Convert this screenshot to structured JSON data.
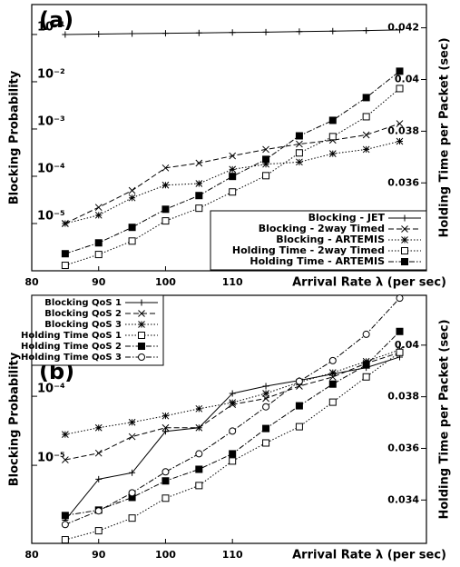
{
  "chart_data": [
    {
      "type": "line",
      "annotation": "(a)",
      "x_label": "Arrival Rate λ (per sec)",
      "y_label": "Blocking Probability",
      "y2_label": "Holding Time per Packet (sec)",
      "x": [
        85,
        90,
        95,
        100,
        105,
        110,
        115,
        120,
        125,
        130,
        135
      ],
      "xlim": [
        80,
        139
      ],
      "xticks": [
        80,
        90,
        100,
        110
      ],
      "ylog": true,
      "ylim": [
        1e-06,
        0.43
      ],
      "yticks": [
        {
          "value": 0.1,
          "label": "10⁻¹"
        },
        {
          "value": 0.01,
          "label": "10⁻²"
        },
        {
          "value": 0.001,
          "label": "10⁻³"
        },
        {
          "value": 0.0001,
          "label": "10⁻⁴"
        },
        {
          "value": 1e-05,
          "label": "10⁻⁵"
        }
      ],
      "y2lim": [
        0.0326,
        0.0429
      ],
      "y2ticks": [
        0.042,
        0.04,
        0.038,
        0.036
      ],
      "legend": "lower right",
      "series": [
        {
          "name": "Blocking - JET",
          "color": "#000000",
          "dash": "solid",
          "marker": "plus",
          "values": [
            0.1,
            0.102,
            0.104,
            0.106,
            0.108,
            0.11,
            0.112,
            0.115,
            0.118,
            0.121,
            0.125
          ]
        },
        {
          "name": "Blocking - 2way Timed",
          "color": "#000000",
          "dash": "dashed",
          "marker": "x",
          "values": [
            1e-05,
            2.2e-05,
            5e-05,
            0.00015,
            0.00019,
            0.00027,
            0.00037,
            0.00048,
            0.00058,
            0.00075,
            0.0013
          ]
        },
        {
          "name": "Blocking - ARTEMIS",
          "color": "#000000",
          "dash": "dotted",
          "marker": "star",
          "values": [
            1e-05,
            1.5e-05,
            3.5e-05,
            6.5e-05,
            7e-05,
            0.00014,
            0.00018,
            0.0002,
            0.0003,
            0.00037,
            0.00055
          ]
        },
        {
          "name": "Holding Time - 2way Timed",
          "color": "#000000",
          "dash": "dotted",
          "marker": "square-open",
          "axis": "y2",
          "values": [
            0.03281,
            0.03323,
            0.03375,
            0.03453,
            0.03502,
            0.03565,
            0.03628,
            0.03716,
            0.03779,
            0.03856,
            0.03965
          ]
        },
        {
          "name": "Holding Time - ARTEMIS",
          "color": "#000000",
          "dash": "dashdot",
          "marker": "square-filled",
          "axis": "y2",
          "values": [
            0.03326,
            0.03368,
            0.03428,
            0.03498,
            0.03551,
            0.03625,
            0.03691,
            0.03782,
            0.03842,
            0.0393,
            0.04032
          ]
        }
      ]
    },
    {
      "type": "line",
      "annotation": "(b)",
      "x_label": "Arrival Rate λ (per sec)",
      "y_label": "Blocking Probability",
      "y2_label": "Holding Time per Packet (sec)",
      "x": [
        85,
        90,
        95,
        100,
        105,
        110,
        115,
        120,
        125,
        130,
        135
      ],
      "xlim": [
        80,
        139
      ],
      "xticks": [
        80,
        90,
        100,
        110
      ],
      "ylog": true,
      "ylim": [
        7.4e-07,
        0.0029
      ],
      "yticks": [
        {
          "value": 0.001,
          "label": "10⁻³"
        },
        {
          "value": 0.0001,
          "label": "10⁻⁴"
        },
        {
          "value": 1e-05,
          "label": "10⁻⁵"
        }
      ],
      "y2lim": [
        0.03232,
        0.04193
      ],
      "y2ticks": [
        0.04,
        0.038,
        0.036,
        0.034
      ],
      "legend": "upper left",
      "series": [
        {
          "name": "Blocking QoS 1",
          "color": "#000000",
          "dash": "solid",
          "marker": "plus",
          "values": [
            1.6e-06,
            6.3e-06,
            7.8e-06,
            3.1e-05,
            3.5e-05,
            0.00011,
            0.00014,
            0.00017,
            0.00021,
            0.00026,
            0.00037
          ]
        },
        {
          "name": "Blocking QoS 2",
          "color": "#000000",
          "dash": "dashed",
          "marker": "x",
          "values": [
            1.2e-05,
            1.5e-05,
            2.6e-05,
            3.5e-05,
            3.5e-05,
            7.6e-05,
            9.3e-05,
            0.00014,
            0.00019,
            0.0003,
            0.00043
          ]
        },
        {
          "name": "Blocking QoS 3",
          "color": "#000000",
          "dash": "dotted",
          "marker": "star",
          "values": [
            2.8e-05,
            3.5e-05,
            4.2e-05,
            5.2e-05,
            6.6e-05,
            8.1e-05,
            0.00011,
            0.00016,
            0.00022,
            0.00032,
            0.00047
          ]
        },
        {
          "name": "Holding Time QoS 1",
          "color": "#000000",
          "dash": "dotted",
          "marker": "square-open",
          "axis": "y2",
          "values": [
            0.03246,
            0.03281,
            0.0333,
            0.03407,
            0.03456,
            0.03551,
            0.03621,
            0.03684,
            0.03779,
            0.03877,
            0.03972
          ]
        },
        {
          "name": "Holding Time QoS 2",
          "color": "#000000",
          "dash": "dashdot",
          "marker": "square-filled",
          "axis": "y2",
          "values": [
            0.0334,
            0.03361,
            0.0341,
            0.03474,
            0.03519,
            0.03579,
            0.03677,
            0.03765,
            0.03849,
            0.03923,
            0.04053
          ]
        },
        {
          "name": "Holding Time QoS 3",
          "color": "#000000",
          "dash": "dashdot",
          "marker": "circle-open",
          "axis": "y2",
          "values": [
            0.03305,
            0.03358,
            0.03428,
            0.03509,
            0.03579,
            0.03667,
            0.03761,
            0.0386,
            0.0394,
            0.04042,
            0.04182
          ]
        }
      ]
    }
  ]
}
